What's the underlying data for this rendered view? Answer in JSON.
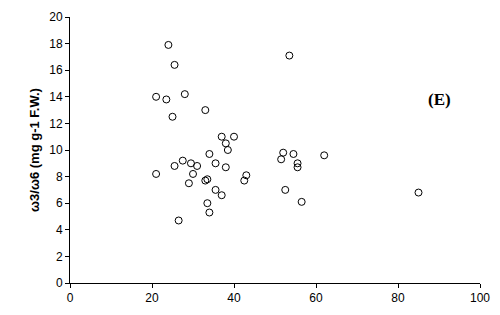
{
  "chart_data": {
    "type": "scatter",
    "y_label": "ω3/ω6 (mg g-1 F.W.)",
    "annotations": [
      "(E)"
    ],
    "x": [
      24,
      25.5,
      53.5,
      21,
      23.5,
      28,
      25,
      33,
      37,
      40,
      38,
      38.5,
      34,
      52,
      54.5,
      62,
      51.5,
      55.5,
      55.5,
      27.5,
      29.5,
      31,
      35.5,
      25.5,
      21,
      30,
      29,
      33,
      33.5,
      35.5,
      37,
      38,
      42.5,
      43,
      52.5,
      56.5,
      33.5,
      34,
      26.5,
      85
    ],
    "values": [
      17.9,
      16.4,
      17.1,
      14,
      13.8,
      14.2,
      12.5,
      13,
      11,
      11,
      10.5,
      10,
      9.7,
      9.8,
      9.7,
      9.6,
      9.3,
      9,
      8.7,
      9.2,
      9,
      8.8,
      9,
      8.8,
      8.2,
      8.2,
      7.5,
      7.7,
      7.8,
      7,
      6.6,
      8.7,
      7.7,
      8.1,
      7,
      6.1,
      6,
      5.3,
      4.7,
      6.8
    ],
    "color": "#000000",
    "marker": "circle-open",
    "xlim": [
      0,
      100
    ],
    "xticks": [
      0,
      20,
      40,
      60,
      80,
      100
    ],
    "ylim": [
      0,
      20
    ],
    "yticks": [
      0,
      2,
      4,
      6,
      8,
      10,
      12,
      14,
      16,
      18,
      20
    ],
    "grid": false
  }
}
